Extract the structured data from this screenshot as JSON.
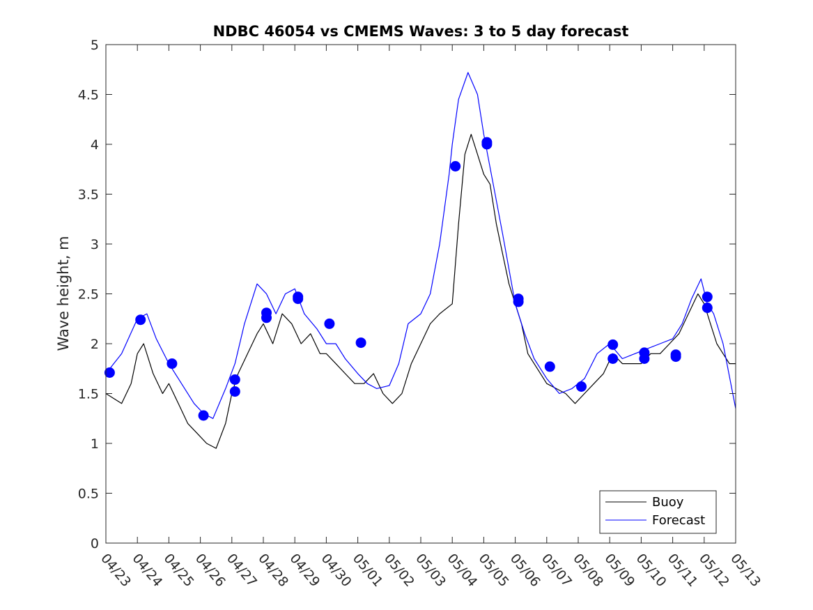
{
  "chart_data": {
    "type": "line",
    "title": "NDBC 46054 vs CMEMS Waves: 3 to 5 day forecast",
    "xlabel": "",
    "ylabel": "Wave height, m",
    "xlim": [
      0,
      20
    ],
    "ylim": [
      0,
      5
    ],
    "x_ticks": [
      "04/23",
      "04/24",
      "04/25",
      "04/26",
      "04/27",
      "04/28",
      "04/29",
      "04/30",
      "05/01",
      "05/02",
      "05/03",
      "05/04",
      "05/05",
      "05/06",
      "05/07",
      "05/08",
      "05/09",
      "05/10",
      "05/11",
      "05/12",
      "05/13"
    ],
    "y_ticks": [
      "0",
      "0.5",
      "1",
      "1.5",
      "2",
      "2.5",
      "3",
      "3.5",
      "4",
      "4.5",
      "5"
    ],
    "legend": {
      "position": "bottom-right",
      "entries": [
        {
          "name": "Buoy",
          "color": "#000000"
        },
        {
          "name": "Forecast",
          "color": "#0000ff"
        }
      ]
    },
    "colors": {
      "buoy": "#000000",
      "forecast": "#0000ff",
      "markers": "#0000ff"
    },
    "series": [
      {
        "name": "Buoy",
        "x": [
          0.0,
          0.5,
          0.8,
          1.0,
          1.2,
          1.5,
          1.8,
          2.0,
          2.3,
          2.6,
          2.9,
          3.2,
          3.5,
          3.8,
          4.0,
          4.2,
          4.5,
          4.8,
          5.0,
          5.3,
          5.6,
          5.9,
          6.2,
          6.5,
          6.8,
          7.0,
          7.3,
          7.6,
          7.9,
          8.2,
          8.5,
          8.8,
          9.1,
          9.4,
          9.7,
          10.0,
          10.3,
          10.6,
          11.0,
          11.2,
          11.4,
          11.6,
          11.8,
          12.0,
          12.2,
          12.4,
          12.6,
          12.8,
          13.0,
          13.2,
          13.4,
          13.6,
          13.8,
          14.0,
          14.3,
          14.6,
          14.9,
          15.2,
          15.5,
          15.8,
          16.1,
          16.4,
          16.7,
          17.0,
          17.3,
          17.6,
          17.9,
          18.2,
          18.5,
          18.8,
          19.0,
          19.2,
          19.4,
          19.6,
          19.8,
          20.0
        ],
        "y": [
          1.5,
          1.4,
          1.6,
          1.9,
          2.0,
          1.7,
          1.5,
          1.6,
          1.4,
          1.2,
          1.1,
          1.0,
          0.95,
          1.2,
          1.5,
          1.7,
          1.9,
          2.1,
          2.2,
          2.0,
          2.3,
          2.2,
          2.0,
          2.1,
          1.9,
          1.9,
          1.8,
          1.7,
          1.6,
          1.6,
          1.7,
          1.5,
          1.4,
          1.5,
          1.8,
          2.0,
          2.2,
          2.3,
          2.4,
          3.2,
          3.9,
          4.1,
          3.9,
          3.7,
          3.6,
          3.2,
          2.9,
          2.6,
          2.4,
          2.2,
          1.9,
          1.8,
          1.7,
          1.6,
          1.55,
          1.5,
          1.4,
          1.5,
          1.6,
          1.7,
          1.9,
          1.8,
          1.8,
          1.8,
          1.9,
          1.9,
          2.0,
          2.1,
          2.3,
          2.5,
          2.4,
          2.2,
          2.0,
          1.9,
          1.8,
          1.8
        ]
      },
      {
        "name": "Forecast",
        "x": [
          0.0,
          0.5,
          1.0,
          1.3,
          1.6,
          2.0,
          2.4,
          2.8,
          3.1,
          3.4,
          3.8,
          4.1,
          4.4,
          4.8,
          5.1,
          5.4,
          5.7,
          6.0,
          6.3,
          6.7,
          7.0,
          7.3,
          7.6,
          8.0,
          8.3,
          8.6,
          9.0,
          9.3,
          9.6,
          10.0,
          10.3,
          10.6,
          10.9,
          11.0,
          11.2,
          11.5,
          11.8,
          12.0,
          12.3,
          12.6,
          13.0,
          13.3,
          13.6,
          14.0,
          14.4,
          14.8,
          15.2,
          15.6,
          16.0,
          16.4,
          16.8,
          17.2,
          17.6,
          18.0,
          18.3,
          18.6,
          18.9,
          19.1,
          19.3,
          19.6,
          20.0
        ],
        "y": [
          1.7,
          1.9,
          2.25,
          2.3,
          2.05,
          1.8,
          1.6,
          1.4,
          1.3,
          1.25,
          1.55,
          1.8,
          2.2,
          2.6,
          2.5,
          2.3,
          2.5,
          2.55,
          2.3,
          2.15,
          2.0,
          2.0,
          1.85,
          1.7,
          1.6,
          1.55,
          1.58,
          1.8,
          2.2,
          2.3,
          2.5,
          3.0,
          3.7,
          4.0,
          4.45,
          4.72,
          4.5,
          4.1,
          3.6,
          3.1,
          2.4,
          2.1,
          1.85,
          1.65,
          1.5,
          1.55,
          1.65,
          1.9,
          2.0,
          1.85,
          1.9,
          1.95,
          2.0,
          2.05,
          2.2,
          2.45,
          2.65,
          2.4,
          2.3,
          2.0,
          1.35
        ]
      }
    ],
    "markers": {
      "name": "Forecast",
      "x": [
        0.12,
        1.1,
        2.1,
        3.1,
        4.1,
        4.1,
        5.1,
        5.1,
        6.1,
        6.1,
        7.1,
        8.1,
        11.1,
        12.1,
        12.1,
        13.1,
        13.1,
        14.1,
        15.1,
        16.1,
        16.1,
        17.1,
        17.1,
        18.1,
        18.1,
        19.1,
        19.1
      ],
      "y": [
        1.71,
        2.24,
        1.8,
        1.28,
        1.64,
        1.52,
        2.31,
        2.26,
        2.47,
        2.45,
        2.2,
        2.01,
        3.78,
        4.02,
        4.0,
        2.45,
        2.42,
        1.77,
        1.57,
        1.99,
        1.85,
        1.91,
        1.85,
        1.89,
        1.87,
        2.47,
        2.36
      ]
    }
  }
}
